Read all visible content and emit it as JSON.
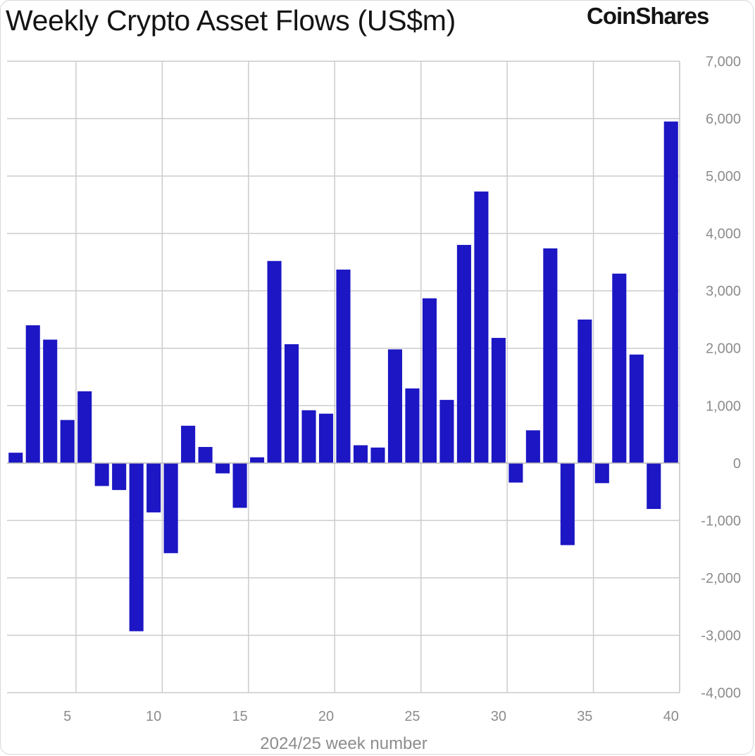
{
  "header": {
    "title": "Weekly Crypto Asset Flows (US$m)",
    "brand": "CoinShares"
  },
  "colors": {
    "bar": "#1c16c4",
    "grid": "#cccccc",
    "text": "#8c8c8c"
  },
  "chart_data": {
    "type": "bar",
    "title": "Weekly Crypto Asset Flows (US$m)",
    "xlabel": "2024/25 week number",
    "ylabel": "",
    "ylim": [
      -4000,
      7000
    ],
    "yticks": [
      7000,
      6000,
      5000,
      4000,
      3000,
      2000,
      1000,
      0,
      -1000,
      -2000,
      -3000,
      -4000
    ],
    "ytick_labels": [
      "7,000",
      "6,000",
      "5,000",
      "4,000",
      "3,000",
      "2,000",
      "1,000",
      "0",
      "-1,000",
      "-2,000",
      "-3,000",
      "-4,000"
    ],
    "xlim": [
      1.5,
      40.5
    ],
    "xticks": [
      5,
      10,
      15,
      20,
      25,
      30,
      35,
      40
    ],
    "xtick_labels": [
      "5",
      "10",
      "15",
      "20",
      "25",
      "30",
      "35",
      "40"
    ],
    "grid": true,
    "categories": [
      2,
      3,
      4,
      5,
      6,
      7,
      8,
      9,
      10,
      11,
      12,
      13,
      14,
      15,
      16,
      17,
      18,
      19,
      20,
      21,
      22,
      23,
      24,
      25,
      26,
      27,
      28,
      29,
      30,
      31,
      32,
      33,
      34,
      35,
      36,
      37,
      38,
      39,
      40
    ],
    "values": [
      180,
      2400,
      2150,
      750,
      1250,
      -400,
      -470,
      -2930,
      -860,
      -1570,
      650,
      280,
      -180,
      -780,
      100,
      3520,
      2070,
      920,
      860,
      3370,
      310,
      270,
      1980,
      1300,
      2870,
      1100,
      3800,
      4730,
      2180,
      -340,
      570,
      3740,
      -1430,
      2500,
      -350,
      3300,
      1890,
      -800,
      5950
    ]
  }
}
